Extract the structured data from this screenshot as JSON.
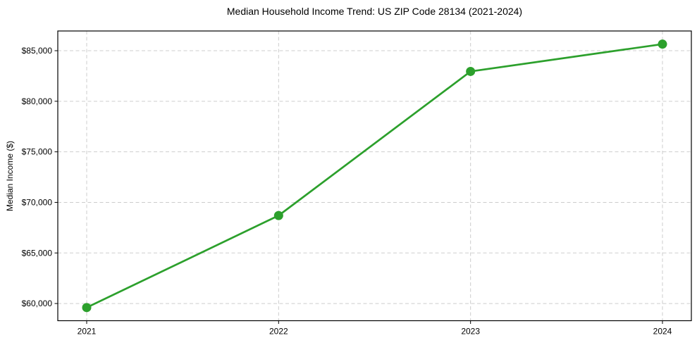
{
  "chart_data": {
    "type": "line",
    "title": "Median Household Income Trend: US ZIP Code 28134 (2021-2024)",
    "xlabel": "",
    "ylabel": "Median Income ($)",
    "categories": [
      "2021",
      "2022",
      "2023",
      "2024"
    ],
    "values": [
      59600,
      68700,
      82950,
      85650
    ],
    "yticks": [
      60000,
      65000,
      70000,
      75000,
      80000,
      85000
    ],
    "ytick_labels": [
      "$60,000",
      "$65,000",
      "$70,000",
      "$75,000",
      "$80,000",
      "$85,000"
    ],
    "ylim": [
      58300,
      86950
    ],
    "grid": true,
    "grid_style": "dashed",
    "legend_position": "none",
    "line_color": "#2ca02c",
    "marker": "circle",
    "grid_color": "#cdcdcd",
    "axis_color": "#000000",
    "background_color": "#ffffff"
  }
}
